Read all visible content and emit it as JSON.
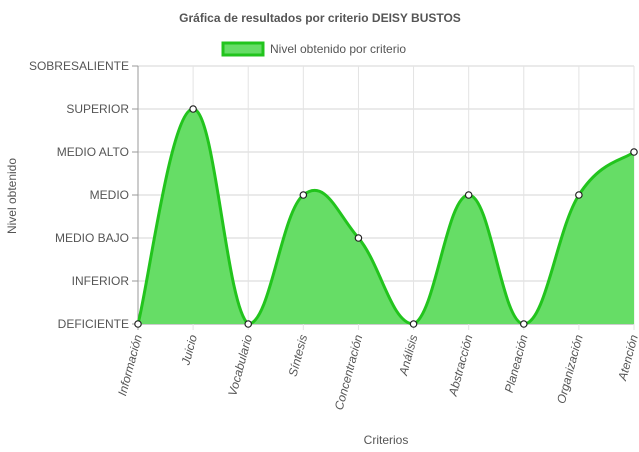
{
  "chart_data": {
    "type": "area",
    "title": "Gráfica de resultados por criterio DEISY BUSTOS",
    "xlabel": "Criterios",
    "ylabel": "Nivel obtenido",
    "legend_position": "top",
    "grid": true,
    "y_levels": [
      "DEFICIENTE",
      "INFERIOR",
      "MEDIO BAJO",
      "MEDIO",
      "MEDIO ALTO",
      "SUPERIOR",
      "SOBRESALIENTE"
    ],
    "ylim": [
      0,
      6
    ],
    "categories": [
      "Información",
      "Juicio",
      "Vocabulario",
      "Síntesis",
      "Concentración",
      "Análisis",
      "Abstracción",
      "Planeación",
      "Organización",
      "Atención"
    ],
    "series": [
      {
        "name": "Nivel obtenido por criterio",
        "values": [
          0,
          5,
          0,
          3,
          2,
          0,
          3,
          0,
          3,
          4
        ],
        "color": "#22c41d",
        "fill": "#66dd66"
      }
    ]
  }
}
